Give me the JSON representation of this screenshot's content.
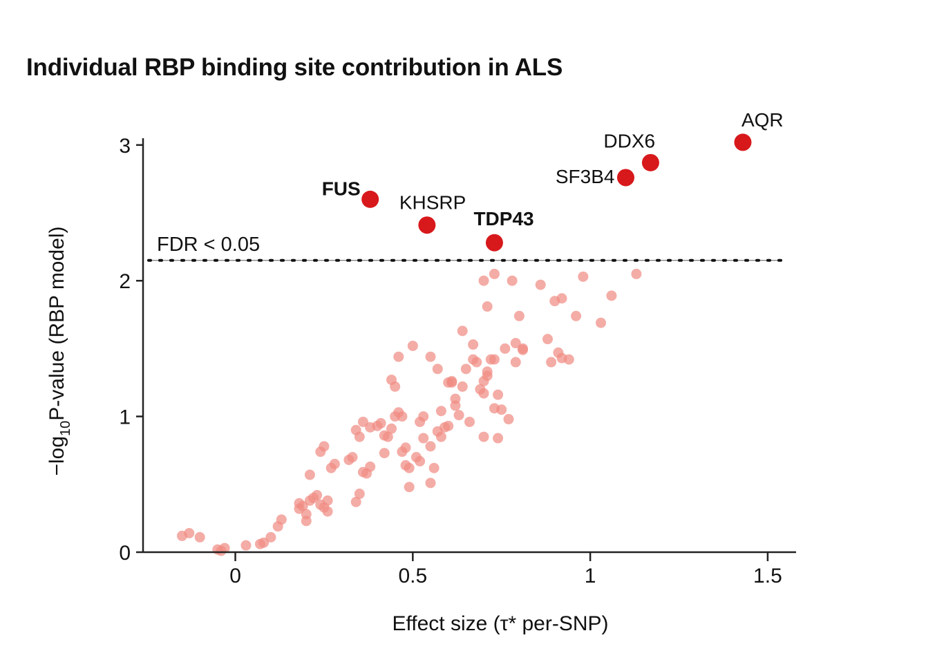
{
  "chart_data": {
    "type": "scatter",
    "title": "Individual RBP binding site contribution in ALS",
    "xlabel": "Effect size (τ* per-SNP)",
    "ylabel_parts": [
      "−log",
      "10",
      "P-value (RBP model)"
    ],
    "xlim": [
      -0.26,
      1.58
    ],
    "ylim": [
      0,
      3.05
    ],
    "xticks": [
      0,
      0.5,
      1,
      1.5
    ],
    "xtick_labels": [
      "0",
      "0.5",
      "1",
      "1.5"
    ],
    "yticks": [
      0,
      1,
      2,
      3
    ],
    "ytick_labels": [
      "0",
      "1",
      "2",
      "3"
    ],
    "threshold": {
      "label": "FDR < 0.05",
      "y": 2.15
    },
    "colors": {
      "significant": "#d7191c",
      "nonsignificant": "#f08c84",
      "axis": "#222222"
    },
    "significant_points": [
      {
        "name": "AQR",
        "x": 1.43,
        "y": 3.02,
        "bold": false
      },
      {
        "name": "DDX6",
        "x": 1.17,
        "y": 2.87,
        "bold": false
      },
      {
        "name": "SF3B4",
        "x": 1.1,
        "y": 2.76,
        "bold": false
      },
      {
        "name": "FUS",
        "x": 0.38,
        "y": 2.6,
        "bold": true
      },
      {
        "name": "KHSRP",
        "x": 0.54,
        "y": 2.41,
        "bold": false
      },
      {
        "name": "TDP43",
        "x": 0.73,
        "y": 2.28,
        "bold": true
      }
    ],
    "nonsignificant_points": [
      [
        -0.15,
        0.12
      ],
      [
        -0.13,
        0.14
      ],
      [
        -0.1,
        0.11
      ],
      [
        -0.05,
        0.02
      ],
      [
        -0.03,
        0.03
      ],
      [
        -0.04,
        0.01
      ],
      [
        0.03,
        0.05
      ],
      [
        0.07,
        0.06
      ],
      [
        0.08,
        0.07
      ],
      [
        0.1,
        0.11
      ],
      [
        0.12,
        0.19
      ],
      [
        0.13,
        0.24
      ],
      [
        0.18,
        0.32
      ],
      [
        0.18,
        0.36
      ],
      [
        0.19,
        0.34
      ],
      [
        0.2,
        0.23
      ],
      [
        0.2,
        0.28
      ],
      [
        0.21,
        0.38
      ],
      [
        0.22,
        0.4
      ],
      [
        0.23,
        0.42
      ],
      [
        0.24,
        0.35
      ],
      [
        0.25,
        0.33
      ],
      [
        0.26,
        0.38
      ],
      [
        0.26,
        0.3
      ],
      [
        0.21,
        0.57
      ],
      [
        0.24,
        0.74
      ],
      [
        0.25,
        0.78
      ],
      [
        0.27,
        0.62
      ],
      [
        0.28,
        0.65
      ],
      [
        0.32,
        0.68
      ],
      [
        0.33,
        0.7
      ],
      [
        0.34,
        0.37
      ],
      [
        0.35,
        0.43
      ],
      [
        0.36,
        0.59
      ],
      [
        0.37,
        0.58
      ],
      [
        0.38,
        0.63
      ],
      [
        0.34,
        0.9
      ],
      [
        0.35,
        0.85
      ],
      [
        0.36,
        0.96
      ],
      [
        0.38,
        0.92
      ],
      [
        0.4,
        0.93
      ],
      [
        0.41,
        0.95
      ],
      [
        0.42,
        0.73
      ],
      [
        0.42,
        0.86
      ],
      [
        0.43,
        0.85
      ],
      [
        0.44,
        0.91
      ],
      [
        0.45,
        1.0
      ],
      [
        0.46,
        1.03
      ],
      [
        0.47,
        0.74
      ],
      [
        0.48,
        0.77
      ],
      [
        0.48,
        0.64
      ],
      [
        0.49,
        0.62
      ],
      [
        0.49,
        0.48
      ],
      [
        0.47,
        1.0
      ],
      [
        0.51,
        0.7
      ],
      [
        0.52,
        0.67
      ],
      [
        0.52,
        0.96
      ],
      [
        0.53,
        1.0
      ],
      [
        0.53,
        0.84
      ],
      [
        0.55,
        0.78
      ],
      [
        0.55,
        0.51
      ],
      [
        0.56,
        0.62
      ],
      [
        0.57,
        0.89
      ],
      [
        0.58,
        0.85
      ],
      [
        0.58,
        1.04
      ],
      [
        0.59,
        0.92
      ],
      [
        0.6,
        0.93
      ],
      [
        0.6,
        1.25
      ],
      [
        0.61,
        1.26
      ],
      [
        0.62,
        1.08
      ],
      [
        0.62,
        1.13
      ],
      [
        0.63,
        1.01
      ],
      [
        0.64,
        1.22
      ],
      [
        0.65,
        1.35
      ],
      [
        0.66,
        0.96
      ],
      [
        0.67,
        1.42
      ],
      [
        0.68,
        1.4
      ],
      [
        0.69,
        1.2
      ],
      [
        0.7,
        1.26
      ],
      [
        0.7,
        1.17
      ],
      [
        0.71,
        1.33
      ],
      [
        0.71,
        1.3
      ],
      [
        0.72,
        1.42
      ],
      [
        0.74,
        0.84
      ],
      [
        0.73,
        1.06
      ],
      [
        0.74,
        1.16
      ],
      [
        0.75,
        1.05
      ],
      [
        0.77,
        0.98
      ],
      [
        0.81,
        1.5
      ],
      [
        0.81,
        1.49
      ],
      [
        0.44,
        1.27
      ],
      [
        0.45,
        1.22
      ],
      [
        0.46,
        1.44
      ],
      [
        0.5,
        1.52
      ],
      [
        0.55,
        1.44
      ],
      [
        0.57,
        1.35
      ],
      [
        0.61,
        1.25
      ],
      [
        0.64,
        1.63
      ],
      [
        0.67,
        1.53
      ],
      [
        0.7,
        0.85
      ],
      [
        0.73,
        1.42
      ],
      [
        0.76,
        1.5
      ],
      [
        0.79,
        1.54
      ],
      [
        0.79,
        1.4
      ],
      [
        0.8,
        1.74
      ],
      [
        0.88,
        1.57
      ],
      [
        0.89,
        1.4
      ],
      [
        0.91,
        1.47
      ],
      [
        0.92,
        1.43
      ],
      [
        0.94,
        1.42
      ],
      [
        0.96,
        1.74
      ],
      [
        1.03,
        1.69
      ],
      [
        1.06,
        1.89
      ],
      [
        0.9,
        1.85
      ],
      [
        0.92,
        1.87
      ],
      [
        0.7,
        2.0
      ],
      [
        0.71,
        1.81
      ],
      [
        0.73,
        2.05
      ],
      [
        0.78,
        2.0
      ],
      [
        0.86,
        1.97
      ],
      [
        0.98,
        2.03
      ],
      [
        1.13,
        2.05
      ]
    ]
  }
}
